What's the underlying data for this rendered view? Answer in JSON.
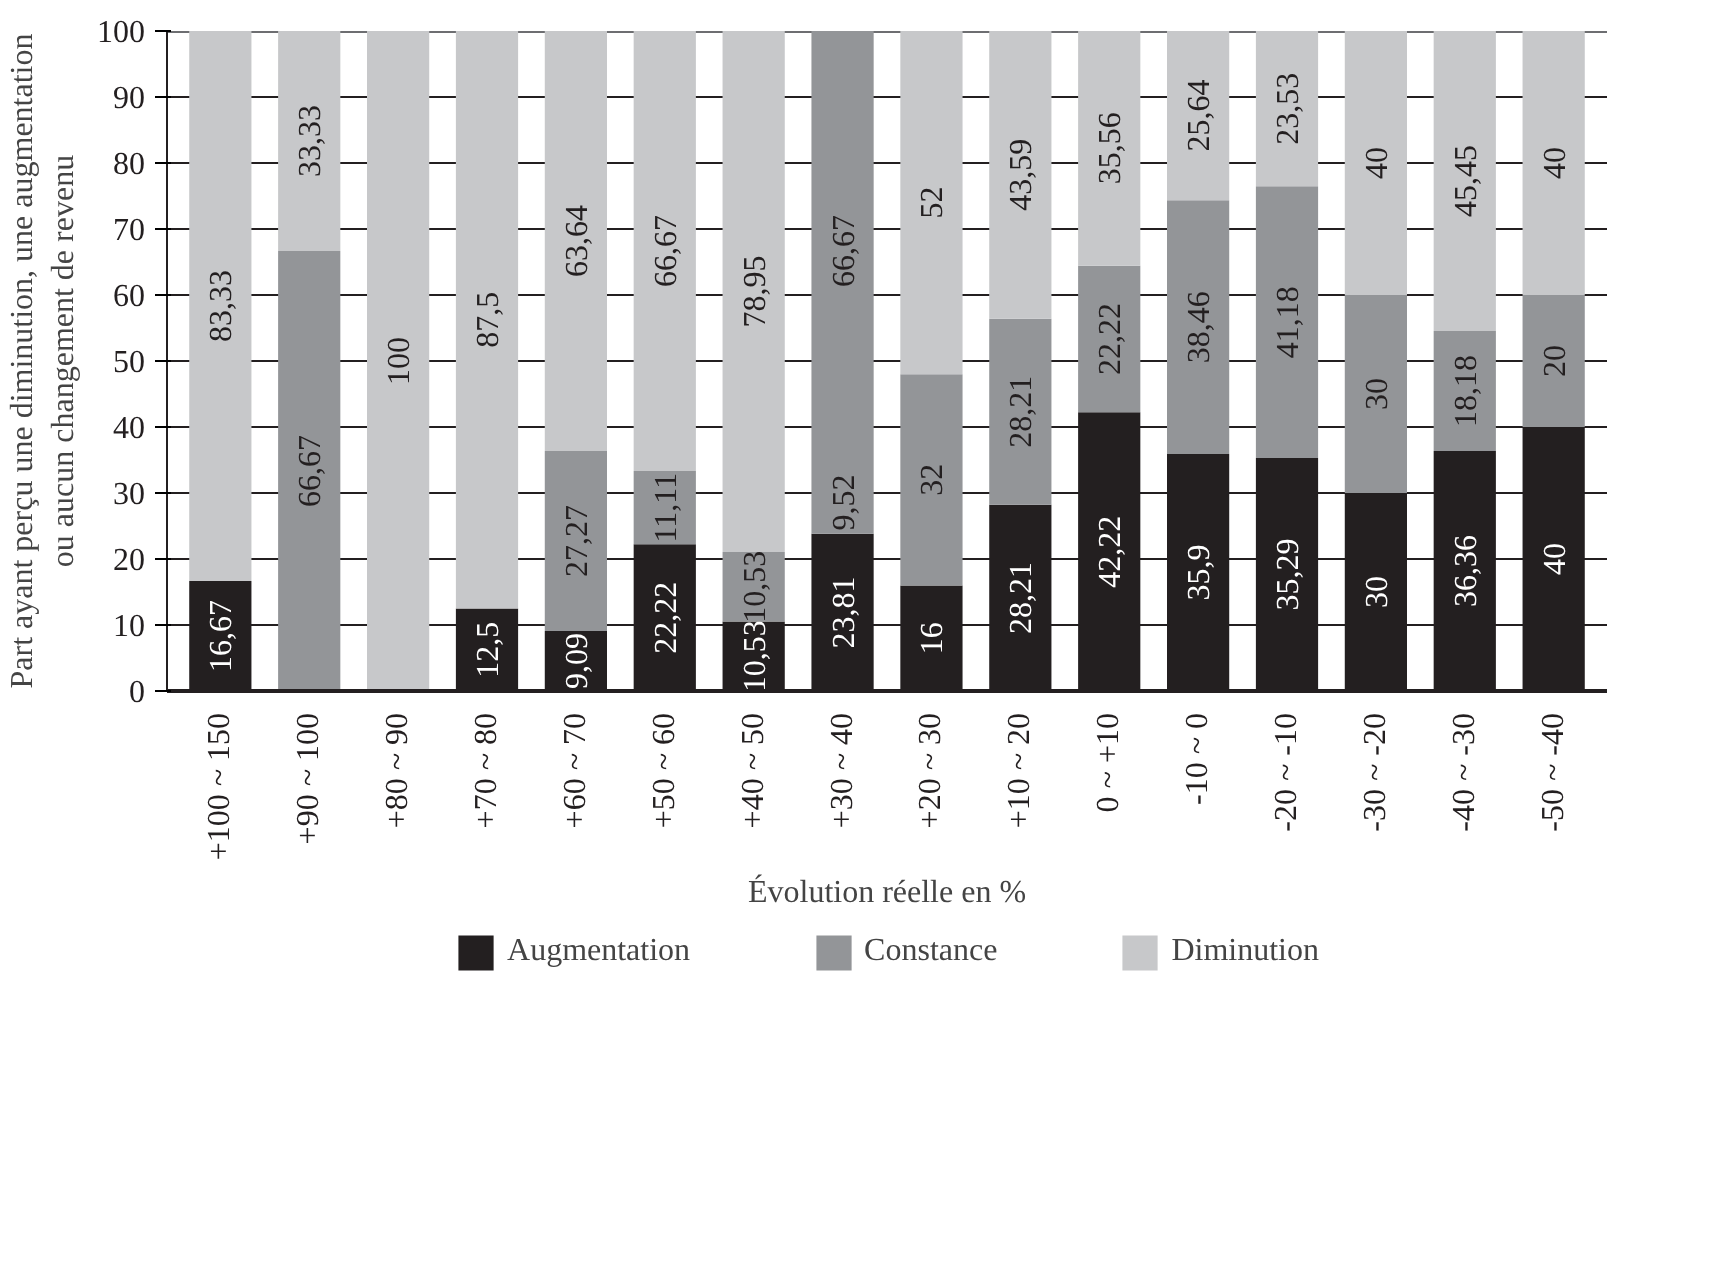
{
  "chart_data": {
    "type": "bar",
    "stacked": true,
    "xlabel": "Évolution réelle en %",
    "ylabel": "Part ayant perçu une diminution, une augmentation\nou aucun changement de revenu",
    "categories": [
      "+100 ~ 150",
      "+90 ~ 100",
      "+80 ~ 90",
      "+70 ~ 80",
      "+60 ~ 70",
      "+50 ~ 60",
      "+40 ~ 50",
      "+30 ~ 40",
      "+20 ~ 30",
      "+10 ~ 20",
      "0 ~ +10",
      "-10 ~ 0",
      "-20 ~ -10",
      "-30 ~ -20",
      "-40 ~ -30",
      "-50 ~ -40"
    ],
    "series": [
      {
        "name": "Augmentation",
        "color": "#231f20",
        "values": [
          16.67,
          0,
          0,
          12.5,
          9.09,
          22.22,
          10.53,
          23.81,
          16,
          28.21,
          42.22,
          35.9,
          35.29,
          30,
          36.36,
          40
        ],
        "value_labels": [
          "16,67",
          null,
          null,
          "12,5",
          "9,09",
          "22,22",
          "10,53",
          "23,81",
          "16",
          "28,21",
          "42,22",
          "35,9",
          "35,29",
          "30",
          "36,36",
          "40"
        ]
      },
      {
        "name": "Constance",
        "color": "#939598",
        "values": [
          0,
          66.67,
          0,
          0,
          27.27,
          11.11,
          10.53,
          9.52,
          32,
          28.21,
          22.22,
          38.46,
          41.18,
          30,
          18.18,
          20
        ],
        "value_labels": [
          null,
          "66,67",
          null,
          null,
          "27,27",
          "11,11",
          "10,53",
          "9,52",
          "32",
          "28,21",
          "22,22",
          "38,46",
          "41,18",
          "30",
          "18,18",
          "20"
        ]
      },
      {
        "name": "Diminution",
        "color": "#c7c8ca",
        "colors": [
          "#c7c8ca",
          "#c7c8ca",
          "#c7c8ca",
          "#c7c8ca",
          "#c7c8ca",
          "#c7c8ca",
          "#c7c8ca",
          "#939598",
          "#c7c8ca",
          "#c7c8ca",
          "#c7c8ca",
          "#c7c8ca",
          "#c7c8ca",
          "#c7c8ca",
          "#c7c8ca",
          "#c7c8ca"
        ],
        "values": [
          83.33,
          33.33,
          100,
          87.5,
          63.64,
          66.67,
          78.95,
          66.67,
          52,
          43.59,
          35.56,
          25.64,
          23.53,
          40,
          45.45,
          40
        ],
        "value_labels": [
          "83,33",
          "33,33",
          "100",
          "87,5",
          "63,64",
          "66,67",
          "78,95",
          "66,67",
          "52",
          "43,59",
          "35,56",
          "25,64",
          "23,53",
          "40",
          "45,45",
          "40"
        ]
      }
    ],
    "ylim": [
      0,
      100
    ],
    "yticks": [
      0,
      10,
      20,
      30,
      40,
      50,
      60,
      70,
      80,
      90,
      100
    ],
    "grid": "y",
    "legend": "bottom"
  }
}
